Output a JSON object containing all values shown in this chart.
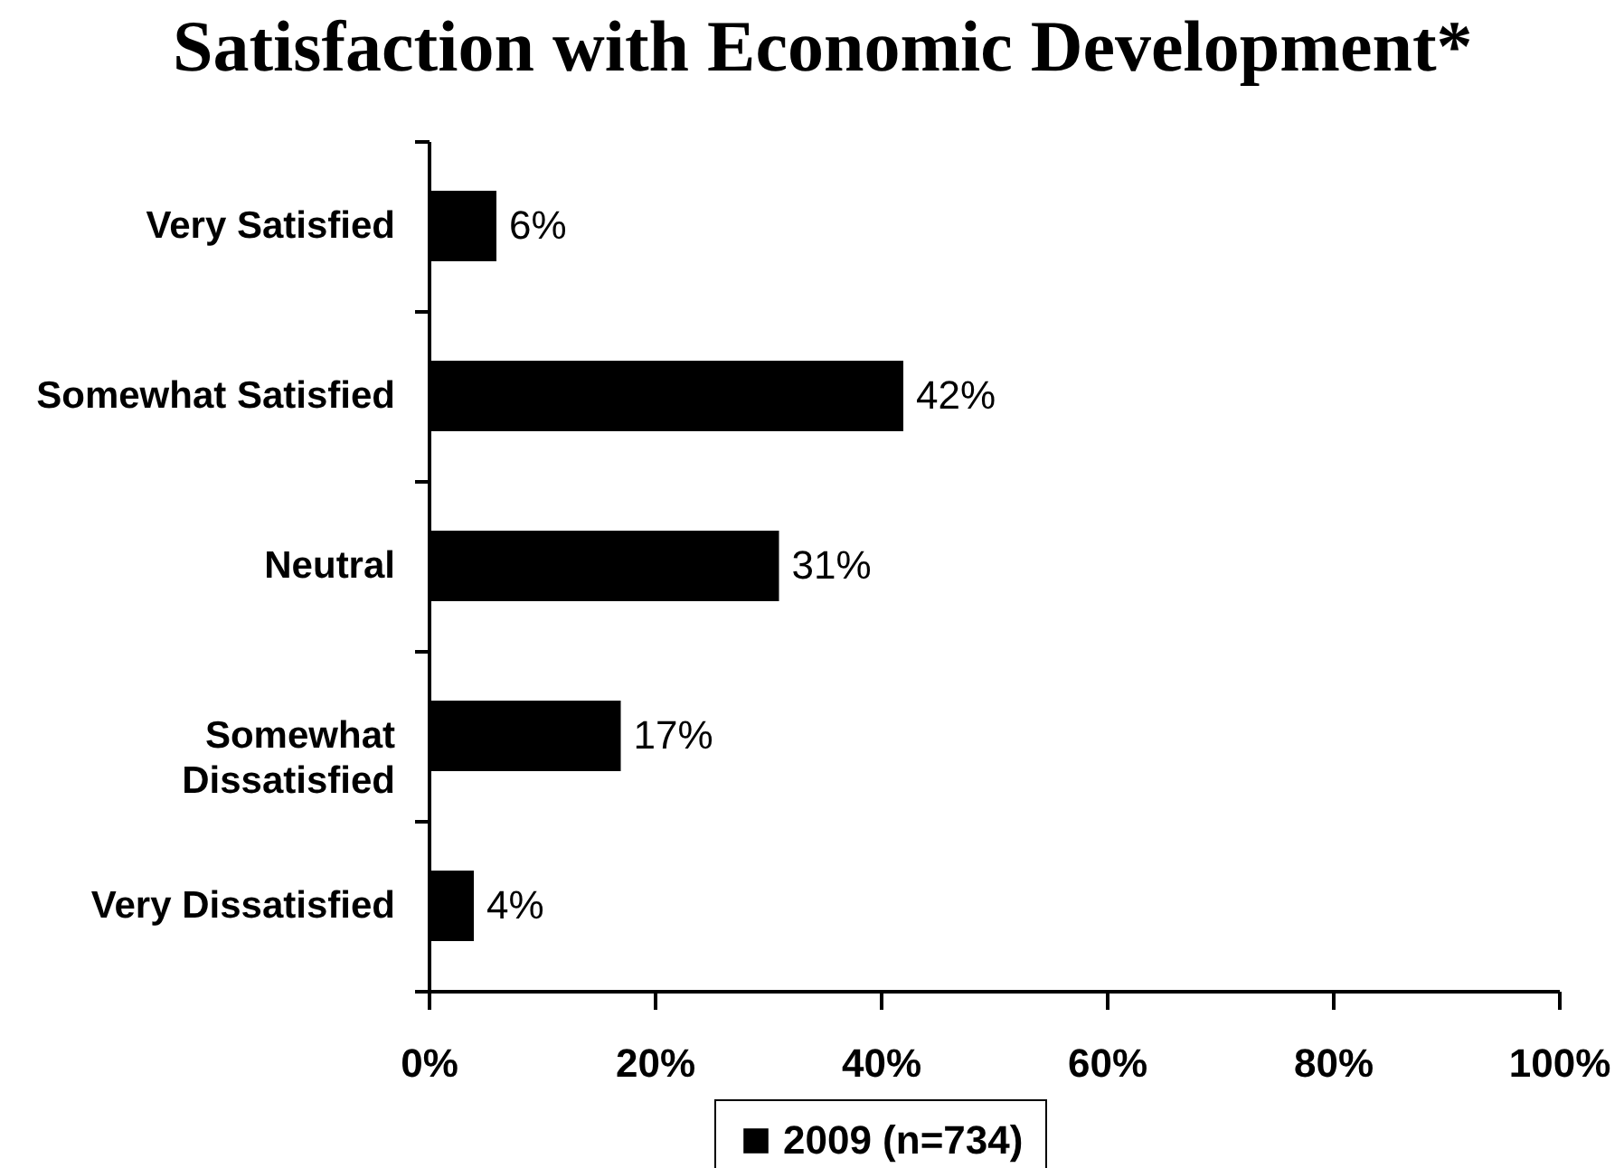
{
  "chart_data": {
    "type": "bar",
    "orientation": "horizontal",
    "title": "Satisfaction with Economic Development*",
    "categories": [
      "Very Satisfied",
      "Somewhat Satisfied",
      "Neutral",
      "Somewhat\nDissatisfied",
      "Very Dissatisfied"
    ],
    "series": [
      {
        "name": "2009 (n=734)",
        "color": "#000000",
        "values": [
          6,
          42,
          31,
          17,
          4
        ],
        "value_labels": [
          "6%",
          "42%",
          "31%",
          "17%",
          "4%"
        ]
      }
    ],
    "xlim": [
      0,
      100
    ],
    "xticks": [
      {
        "value": 0,
        "label": "0%"
      },
      {
        "value": 20,
        "label": "20%"
      },
      {
        "value": 40,
        "label": "40%"
      },
      {
        "value": 60,
        "label": "60%"
      },
      {
        "value": 80,
        "label": "80%"
      },
      {
        "value": 100,
        "label": "100%"
      }
    ],
    "grid": false,
    "legend": "bottom"
  }
}
